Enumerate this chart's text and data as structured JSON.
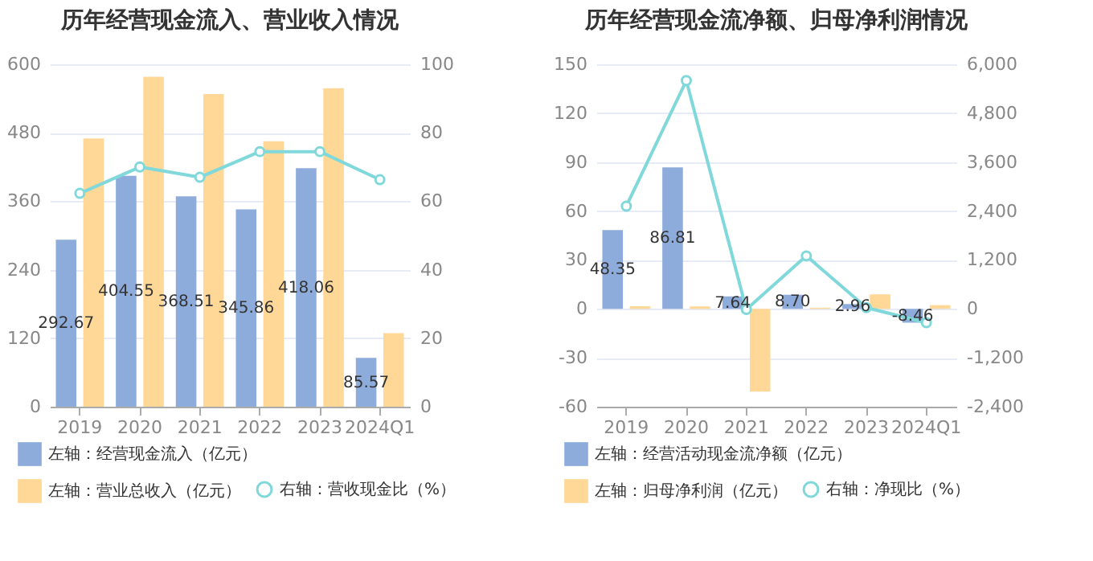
{
  "chart_data": [
    {
      "type": "bar",
      "title": "历年经营现金流入、营业收入情况",
      "categories": [
        "2019",
        "2020",
        "2021",
        "2022",
        "2023",
        "2024Q1"
      ],
      "series": [
        {
          "name": "左轴：经营现金流入（亿元）",
          "color": "#8eacdb",
          "values": [
            292.67,
            404.55,
            368.51,
            345.86,
            418.06,
            85.57
          ],
          "value_labels": [
            "292.67",
            "404.55",
            "368.51",
            "345.86",
            "418.06",
            "85.57"
          ]
        },
        {
          "name": "左轴：营业总收入（亿元）",
          "color": "#ffd897",
          "values": [
            470,
            578,
            548,
            465,
            558,
            129
          ]
        },
        {
          "name": "右轴：营收现金比（%）",
          "type": "line",
          "axis": "y2",
          "color": "#80d8da",
          "marker": "circle",
          "values": [
            62.3,
            70,
            67,
            74.5,
            74.5,
            66.3
          ]
        }
      ],
      "ylim": [
        0,
        600
      ],
      "yticks": [
        0,
        120,
        240,
        360,
        480,
        600
      ],
      "y2lim": [
        0,
        100
      ],
      "y2ticks": [
        0,
        20,
        40,
        60,
        80,
        100
      ],
      "grid": "y",
      "legend": "bottom"
    },
    {
      "type": "bar",
      "title": "历年经营现金流净额、归母净利润情况",
      "categories": [
        "2019",
        "2020",
        "2021",
        "2022",
        "2023",
        "2024Q1"
      ],
      "series": [
        {
          "name": "左轴：经营活动现金流净额（亿元）",
          "color": "#8eacdb",
          "values": [
            48.35,
            86.81,
            7.64,
            8.7,
            2.96,
            -8.46
          ],
          "value_labels": [
            "48.35",
            "86.81",
            "7.64",
            "8.70",
            "2.96",
            "-8.46"
          ]
        },
        {
          "name": "左轴：归母净利润（亿元）",
          "color": "#ffd897",
          "values": [
            1.6,
            1.5,
            -50.8,
            0.7,
            8.9,
            2.3
          ]
        },
        {
          "name": "右轴：净现比（%）",
          "type": "line",
          "axis": "y2",
          "color": "#80d8da",
          "marker": "circle",
          "values": [
            2520,
            5600,
            -15,
            1300,
            30,
            -340
          ]
        }
      ],
      "ylim": [
        -60,
        150
      ],
      "yticks": [
        -60,
        -30,
        0,
        30,
        60,
        90,
        120,
        150
      ],
      "y2lim": [
        -2400,
        6000
      ],
      "y2ticks": [
        {
          "value": -2400,
          "label": "-2,400"
        },
        {
          "value": -1200,
          "label": "-1,200"
        },
        0,
        {
          "value": 1200,
          "label": "1,200"
        },
        {
          "value": 2400,
          "label": "2,400"
        },
        {
          "value": 3600,
          "label": "3,600"
        },
        {
          "value": 4800,
          "label": "4,800"
        },
        {
          "value": 6000,
          "label": "6,000"
        }
      ],
      "grid": "y",
      "legend": "bottom"
    }
  ]
}
